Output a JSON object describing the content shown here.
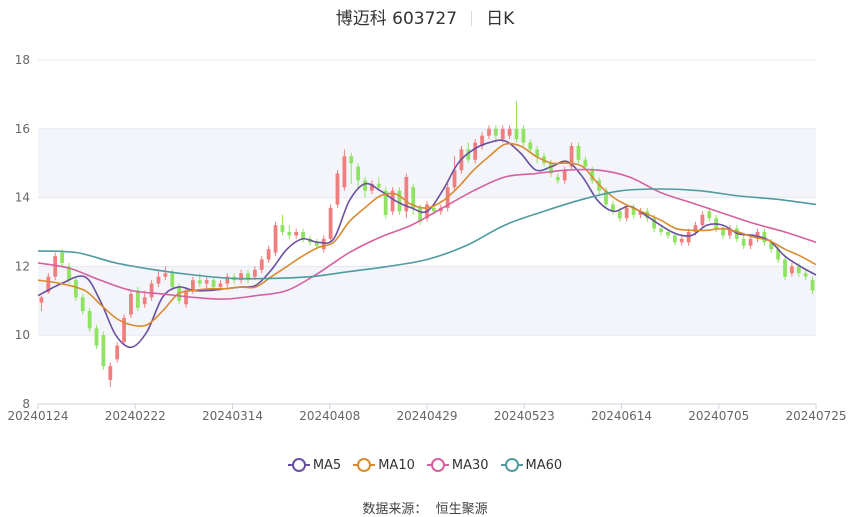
{
  "chart_data": {
    "type": "candlestick",
    "title": "博迈科 603727",
    "subtitle": "日K",
    "y_ticks": [
      "8",
      "10",
      "12",
      "14",
      "16",
      "18"
    ],
    "ylim": [
      8,
      18
    ],
    "x_tick_labels": [
      "20240124",
      "20240222",
      "20240314",
      "20240408",
      "20240429",
      "20240523",
      "20240614",
      "20240705",
      "20240725"
    ],
    "grid": true,
    "legend_position": "bottom",
    "up_color": "#f07e7e",
    "down_color": "#8fe360",
    "candles": [
      {
        "o": 10.95,
        "c": 11.1,
        "h": 11.15,
        "l": 10.7
      },
      {
        "o": 11.25,
        "c": 11.7,
        "h": 11.8,
        "l": 11.2
      },
      {
        "o": 11.7,
        "c": 12.3,
        "h": 12.4,
        "l": 11.6
      },
      {
        "o": 12.4,
        "c": 12.1,
        "h": 12.5,
        "l": 12.0
      },
      {
        "o": 12.0,
        "c": 11.6,
        "h": 12.1,
        "l": 11.5
      },
      {
        "o": 11.6,
        "c": 11.1,
        "h": 11.7,
        "l": 11.0
      },
      {
        "o": 11.1,
        "c": 10.7,
        "h": 11.2,
        "l": 10.6
      },
      {
        "o": 10.7,
        "c": 10.2,
        "h": 10.8,
        "l": 10.1
      },
      {
        "o": 10.2,
        "c": 9.7,
        "h": 10.3,
        "l": 9.6
      },
      {
        "o": 10.0,
        "c": 9.1,
        "h": 10.1,
        "l": 9.0
      },
      {
        "o": 8.7,
        "c": 9.1,
        "h": 9.2,
        "l": 8.5
      },
      {
        "o": 9.3,
        "c": 9.7,
        "h": 9.8,
        "l": 9.2
      },
      {
        "o": 9.8,
        "c": 10.5,
        "h": 10.6,
        "l": 9.7
      },
      {
        "o": 10.6,
        "c": 11.2,
        "h": 11.3,
        "l": 10.5
      },
      {
        "o": 11.3,
        "c": 10.8,
        "h": 11.4,
        "l": 10.7
      },
      {
        "o": 10.9,
        "c": 11.1,
        "h": 11.3,
        "l": 10.8
      },
      {
        "o": 11.1,
        "c": 11.5,
        "h": 11.6,
        "l": 11.0
      },
      {
        "o": 11.5,
        "c": 11.7,
        "h": 11.9,
        "l": 11.4
      },
      {
        "o": 11.7,
        "c": 11.8,
        "h": 12.0,
        "l": 11.6
      },
      {
        "o": 11.8,
        "c": 11.4,
        "h": 11.9,
        "l": 11.3
      },
      {
        "o": 11.4,
        "c": 11.0,
        "h": 11.5,
        "l": 10.9
      },
      {
        "o": 10.9,
        "c": 11.3,
        "h": 11.4,
        "l": 10.8
      },
      {
        "o": 11.3,
        "c": 11.6,
        "h": 11.7,
        "l": 11.2
      },
      {
        "o": 11.6,
        "c": 11.5,
        "h": 11.8,
        "l": 11.4
      },
      {
        "o": 11.5,
        "c": 11.6,
        "h": 11.7,
        "l": 11.3
      },
      {
        "o": 11.6,
        "c": 11.4,
        "h": 11.7,
        "l": 11.3
      },
      {
        "o": 11.4,
        "c": 11.5,
        "h": 11.6,
        "l": 11.3
      },
      {
        "o": 11.5,
        "c": 11.7,
        "h": 11.8,
        "l": 11.4
      },
      {
        "o": 11.7,
        "c": 11.6,
        "h": 11.8,
        "l": 11.5
      },
      {
        "o": 11.6,
        "c": 11.8,
        "h": 11.9,
        "l": 11.5
      },
      {
        "o": 11.8,
        "c": 11.6,
        "h": 11.9,
        "l": 11.5
      },
      {
        "o": 11.7,
        "c": 11.9,
        "h": 12.0,
        "l": 11.6
      },
      {
        "o": 11.9,
        "c": 12.2,
        "h": 12.3,
        "l": 11.8
      },
      {
        "o": 12.2,
        "c": 12.5,
        "h": 12.6,
        "l": 12.1
      },
      {
        "o": 12.4,
        "c": 13.2,
        "h": 13.3,
        "l": 12.3
      },
      {
        "o": 13.2,
        "c": 13.0,
        "h": 13.5,
        "l": 12.9
      },
      {
        "o": 13.0,
        "c": 12.9,
        "h": 13.2,
        "l": 12.8
      },
      {
        "o": 12.9,
        "c": 13.0,
        "h": 13.1,
        "l": 12.8
      },
      {
        "o": 13.0,
        "c": 12.8,
        "h": 13.1,
        "l": 12.7
      },
      {
        "o": 12.8,
        "c": 12.7,
        "h": 12.9,
        "l": 12.6
      },
      {
        "o": 12.7,
        "c": 12.6,
        "h": 12.8,
        "l": 12.5
      },
      {
        "o": 12.5,
        "c": 12.8,
        "h": 12.9,
        "l": 12.4
      },
      {
        "o": 12.8,
        "c": 13.7,
        "h": 13.8,
        "l": 12.7
      },
      {
        "o": 13.8,
        "c": 14.7,
        "h": 14.8,
        "l": 13.7
      },
      {
        "o": 14.3,
        "c": 15.2,
        "h": 15.4,
        "l": 14.2
      },
      {
        "o": 15.2,
        "c": 15.0,
        "h": 15.3,
        "l": 14.4
      },
      {
        "o": 14.9,
        "c": 14.5,
        "h": 15.0,
        "l": 14.3
      },
      {
        "o": 14.5,
        "c": 14.2,
        "h": 14.6,
        "l": 14.0
      },
      {
        "o": 14.2,
        "c": 14.4,
        "h": 14.5,
        "l": 14.1
      },
      {
        "o": 14.4,
        "c": 14.3,
        "h": 14.6,
        "l": 14.2
      },
      {
        "o": 14.2,
        "c": 13.5,
        "h": 14.3,
        "l": 13.4
      },
      {
        "o": 13.6,
        "c": 14.2,
        "h": 14.3,
        "l": 13.5
      },
      {
        "o": 14.2,
        "c": 13.6,
        "h": 14.3,
        "l": 13.5
      },
      {
        "o": 13.6,
        "c": 14.6,
        "h": 14.7,
        "l": 13.4
      },
      {
        "o": 14.3,
        "c": 13.7,
        "h": 14.4,
        "l": 13.5
      },
      {
        "o": 13.7,
        "c": 13.3,
        "h": 13.8,
        "l": 13.2
      },
      {
        "o": 13.4,
        "c": 13.8,
        "h": 13.9,
        "l": 13.3
      },
      {
        "o": 13.7,
        "c": 13.6,
        "h": 13.8,
        "l": 13.5
      },
      {
        "o": 13.6,
        "c": 13.7,
        "h": 13.8,
        "l": 13.5
      },
      {
        "o": 13.7,
        "c": 14.3,
        "h": 14.4,
        "l": 13.6
      },
      {
        "o": 14.3,
        "c": 14.8,
        "h": 15.2,
        "l": 14.2
      },
      {
        "o": 14.8,
        "c": 15.4,
        "h": 15.5,
        "l": 14.7
      },
      {
        "o": 15.4,
        "c": 15.1,
        "h": 15.6,
        "l": 15.0
      },
      {
        "o": 15.1,
        "c": 15.6,
        "h": 15.7,
        "l": 15.0
      },
      {
        "o": 15.5,
        "c": 15.8,
        "h": 15.9,
        "l": 15.4
      },
      {
        "o": 15.8,
        "c": 16.0,
        "h": 16.1,
        "l": 15.7
      },
      {
        "o": 16.0,
        "c": 15.8,
        "h": 16.1,
        "l": 15.6
      },
      {
        "o": 15.7,
        "c": 16.0,
        "h": 16.1,
        "l": 15.6
      },
      {
        "o": 15.8,
        "c": 16.0,
        "h": 16.1,
        "l": 15.7
      },
      {
        "o": 16.0,
        "c": 15.7,
        "h": 16.8,
        "l": 15.6
      },
      {
        "o": 16.0,
        "c": 15.6,
        "h": 16.1,
        "l": 15.5
      },
      {
        "o": 15.6,
        "c": 15.4,
        "h": 15.7,
        "l": 15.3
      },
      {
        "o": 15.4,
        "c": 15.2,
        "h": 15.5,
        "l": 15.0
      },
      {
        "o": 15.2,
        "c": 15.0,
        "h": 15.3,
        "l": 14.9
      },
      {
        "o": 15.0,
        "c": 14.7,
        "h": 15.1,
        "l": 14.6
      },
      {
        "o": 14.6,
        "c": 14.5,
        "h": 14.7,
        "l": 14.4
      },
      {
        "o": 14.5,
        "c": 14.8,
        "h": 14.9,
        "l": 14.4
      },
      {
        "o": 14.9,
        "c": 15.5,
        "h": 15.6,
        "l": 14.8
      },
      {
        "o": 15.5,
        "c": 15.1,
        "h": 15.6,
        "l": 15.0
      },
      {
        "o": 15.1,
        "c": 14.9,
        "h": 15.2,
        "l": 14.8
      },
      {
        "o": 14.8,
        "c": 14.5,
        "h": 14.9,
        "l": 14.4
      },
      {
        "o": 14.5,
        "c": 14.2,
        "h": 14.6,
        "l": 14.1
      },
      {
        "o": 14.2,
        "c": 13.8,
        "h": 14.3,
        "l": 13.7
      },
      {
        "o": 13.8,
        "c": 13.6,
        "h": 13.9,
        "l": 13.5
      },
      {
        "o": 13.6,
        "c": 13.4,
        "h": 13.7,
        "l": 13.3
      },
      {
        "o": 13.4,
        "c": 13.7,
        "h": 13.8,
        "l": 13.3
      },
      {
        "o": 13.7,
        "c": 13.5,
        "h": 13.8,
        "l": 13.4
      },
      {
        "o": 13.5,
        "c": 13.6,
        "h": 13.7,
        "l": 13.4
      },
      {
        "o": 13.6,
        "c": 13.4,
        "h": 13.7,
        "l": 13.3
      },
      {
        "o": 13.4,
        "c": 13.1,
        "h": 13.5,
        "l": 13.0
      },
      {
        "o": 13.1,
        "c": 13.0,
        "h": 13.2,
        "l": 12.9
      },
      {
        "o": 13.0,
        "c": 12.9,
        "h": 13.1,
        "l": 12.8
      },
      {
        "o": 12.9,
        "c": 12.7,
        "h": 13.0,
        "l": 12.6
      },
      {
        "o": 12.7,
        "c": 12.8,
        "h": 12.9,
        "l": 12.6
      },
      {
        "o": 12.7,
        "c": 13.0,
        "h": 13.1,
        "l": 12.6
      },
      {
        "o": 13.0,
        "c": 13.2,
        "h": 13.3,
        "l": 12.9
      },
      {
        "o": 13.2,
        "c": 13.5,
        "h": 13.6,
        "l": 13.1
      },
      {
        "o": 13.6,
        "c": 13.4,
        "h": 13.7,
        "l": 13.3
      },
      {
        "o": 13.4,
        "c": 13.1,
        "h": 13.5,
        "l": 13.0
      },
      {
        "o": 13.1,
        "c": 12.9,
        "h": 13.2,
        "l": 12.8
      },
      {
        "o": 12.9,
        "c": 13.1,
        "h": 13.2,
        "l": 12.8
      },
      {
        "o": 13.1,
        "c": 12.8,
        "h": 13.2,
        "l": 12.7
      },
      {
        "o": 12.8,
        "c": 12.6,
        "h": 12.9,
        "l": 12.5
      },
      {
        "o": 12.6,
        "c": 12.8,
        "h": 12.9,
        "l": 12.5
      },
      {
        "o": 12.8,
        "c": 13.0,
        "h": 13.1,
        "l": 12.7
      },
      {
        "o": 13.0,
        "c": 12.7,
        "h": 13.1,
        "l": 12.6
      },
      {
        "o": 12.7,
        "c": 12.5,
        "h": 12.8,
        "l": 12.4
      },
      {
        "o": 12.5,
        "c": 12.2,
        "h": 12.6,
        "l": 12.1
      },
      {
        "o": 12.2,
        "c": 11.7,
        "h": 12.3,
        "l": 11.6
      },
      {
        "o": 11.8,
        "c": 12.0,
        "h": 12.1,
        "l": 11.7
      },
      {
        "o": 12.0,
        "c": 11.8,
        "h": 12.1,
        "l": 11.7
      },
      {
        "o": 11.8,
        "c": 11.7,
        "h": 11.9,
        "l": 11.6
      },
      {
        "o": 11.6,
        "c": 11.3,
        "h": 11.7,
        "l": 11.2
      }
    ],
    "series": [
      {
        "name": "MA5",
        "color": "#6a4fa0",
        "x": [
          0,
          0.03,
          0.06,
          0.08,
          0.1,
          0.12,
          0.14,
          0.16,
          0.18,
          0.2,
          0.22,
          0.24,
          0.26,
          0.28,
          0.3,
          0.32,
          0.34,
          0.36,
          0.38,
          0.4,
          0.42,
          0.44,
          0.46,
          0.48,
          0.5,
          0.52,
          0.54,
          0.56,
          0.58,
          0.6,
          0.62,
          0.64,
          0.66,
          0.68,
          0.7,
          0.72,
          0.74,
          0.76,
          0.78,
          0.8,
          0.82,
          0.84,
          0.86,
          0.88,
          0.9,
          0.92,
          0.94,
          0.96,
          0.98,
          1.0
        ],
        "values": [
          11.15,
          11.5,
          11.7,
          11.0,
          10.0,
          9.65,
          10.1,
          11.1,
          11.4,
          11.3,
          11.3,
          11.35,
          11.4,
          11.45,
          11.9,
          12.5,
          12.8,
          12.7,
          12.8,
          13.9,
          14.4,
          14.2,
          13.9,
          13.7,
          13.6,
          14.2,
          15.0,
          15.4,
          15.6,
          15.65,
          15.3,
          14.8,
          14.9,
          15.05,
          14.6,
          13.9,
          13.6,
          13.75,
          13.5,
          13.2,
          12.95,
          12.9,
          13.2,
          13.2,
          12.95,
          12.9,
          12.75,
          12.3,
          12.0,
          11.75
        ]
      },
      {
        "name": "MA10",
        "color": "#d98a2f",
        "x": [
          0,
          0.03,
          0.06,
          0.08,
          0.1,
          0.12,
          0.14,
          0.16,
          0.18,
          0.2,
          0.22,
          0.24,
          0.26,
          0.28,
          0.3,
          0.32,
          0.34,
          0.36,
          0.38,
          0.4,
          0.42,
          0.44,
          0.46,
          0.48,
          0.5,
          0.52,
          0.54,
          0.56,
          0.58,
          0.6,
          0.62,
          0.64,
          0.66,
          0.68,
          0.7,
          0.72,
          0.74,
          0.76,
          0.78,
          0.8,
          0.82,
          0.84,
          0.86,
          0.88,
          0.9,
          0.92,
          0.94,
          0.96,
          0.98,
          1.0
        ],
        "values": [
          11.6,
          11.5,
          11.3,
          10.9,
          10.5,
          10.3,
          10.3,
          10.7,
          11.2,
          11.3,
          11.35,
          11.35,
          11.4,
          11.4,
          11.7,
          12.0,
          12.3,
          12.55,
          12.7,
          13.3,
          13.7,
          14.05,
          14.1,
          13.8,
          13.7,
          13.9,
          14.3,
          14.8,
          15.2,
          15.55,
          15.5,
          15.2,
          15.0,
          15.0,
          14.9,
          14.4,
          14.0,
          13.75,
          13.55,
          13.35,
          13.1,
          13.05,
          13.05,
          13.1,
          13.0,
          12.85,
          12.75,
          12.5,
          12.3,
          12.05
        ]
      },
      {
        "name": "MA30",
        "color": "#d6609f",
        "x": [
          0,
          0.04,
          0.08,
          0.12,
          0.16,
          0.2,
          0.24,
          0.28,
          0.32,
          0.36,
          0.4,
          0.44,
          0.48,
          0.52,
          0.56,
          0.6,
          0.64,
          0.68,
          0.72,
          0.76,
          0.8,
          0.84,
          0.88,
          0.92,
          0.96,
          1.0
        ],
        "values": [
          12.1,
          11.95,
          11.6,
          11.3,
          11.2,
          11.1,
          11.05,
          11.15,
          11.3,
          11.8,
          12.4,
          12.85,
          13.2,
          13.7,
          14.2,
          14.6,
          14.7,
          14.8,
          14.8,
          14.6,
          14.15,
          13.85,
          13.55,
          13.25,
          13.0,
          12.7
        ]
      },
      {
        "name": "MA60",
        "color": "#4f9b9e",
        "x": [
          0,
          0.05,
          0.1,
          0.15,
          0.2,
          0.25,
          0.3,
          0.35,
          0.4,
          0.45,
          0.5,
          0.55,
          0.6,
          0.65,
          0.7,
          0.75,
          0.8,
          0.85,
          0.9,
          0.95,
          1.0
        ],
        "values": [
          12.45,
          12.4,
          12.1,
          11.9,
          11.75,
          11.65,
          11.65,
          11.7,
          11.85,
          12.0,
          12.2,
          12.6,
          13.2,
          13.6,
          13.95,
          14.2,
          14.25,
          14.2,
          14.05,
          13.95,
          13.8
        ]
      }
    ]
  },
  "legend": {
    "items": [
      {
        "label": "MA5",
        "color": "#6a4fa0"
      },
      {
        "label": "MA10",
        "color": "#d98a2f"
      },
      {
        "label": "MA30",
        "color": "#d6609f"
      },
      {
        "label": "MA60",
        "color": "#4f9b9e"
      }
    ]
  },
  "footer": {
    "source_label": "数据来源：",
    "source_value": "恒生聚源"
  }
}
